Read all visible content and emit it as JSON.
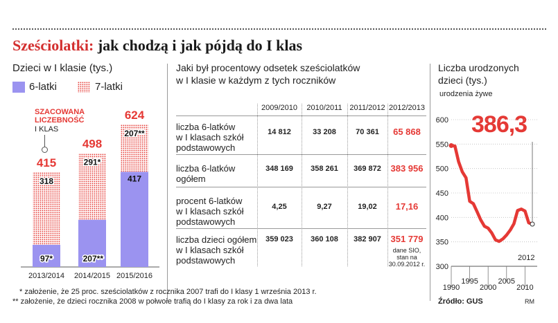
{
  "title": {
    "red": "Sześciolatki:",
    "rest": " jak chodzą i jak pójdą do I klas"
  },
  "bar_chart": {
    "subtitle": "Dzieci w I klasie (tys.)",
    "legend_6": "6-latki",
    "legend_7": "7-latki",
    "est_label_1": "SZACOWANA",
    "est_label_2": "LICZEBNOŚĆ",
    "est_label_3": "I KLAS",
    "colors": {
      "six": "#9b93f0",
      "seven": "#e53935"
    }
  },
  "table": {
    "heading_1": "Jaki był procentowy odsetek sześciolatków",
    "heading_2": "w I klasie w każdym z tych roczników",
    "columns": [
      "2009/2010",
      "2010/2011",
      "2011/2012",
      "2012/2013"
    ],
    "rows": [
      {
        "label": [
          "liczba 6-latków",
          "w I klasach szkół",
          "podstawowych"
        ],
        "values": [
          "14 812",
          "33 208",
          "70 361",
          "65 868"
        ]
      },
      {
        "label": [
          "liczba 6-latków",
          "ogółem"
        ],
        "values": [
          "348 169",
          "358 261",
          "369 872",
          "383 956"
        ]
      },
      {
        "label": [
          "procent 6-latków",
          "w I klasach szkół",
          "podstawowych"
        ],
        "values": [
          "4,25",
          "9,27",
          "19,02",
          "17,16"
        ]
      },
      {
        "label": [
          "liczba dzieci ogółem",
          "w I klasach szkół",
          "podstawowych"
        ],
        "values": [
          "359 023",
          "360 108",
          "382 907",
          "351 779"
        ]
      }
    ],
    "note": [
      "dane SIO,",
      "stan na",
      "30.09.2012 r."
    ]
  },
  "line_chart": {
    "subtitle_1": "Liczba urodzonych",
    "subtitle_2": "dzieci (tys.)",
    "subtitle_3": "urodzenia żywe",
    "highlight_value": "386,3",
    "highlight_year": "2012"
  },
  "footnotes": {
    "fn1": "* założenie, że 25 proc. sześciolatków z rocznika 2007 trafi do I klasy 1 września 2013 r.",
    "fn2": "** założenie, że dzieci rocznika 2008 w połwoie trafią do I klasy za rok i za dwa lata",
    "source": "Źródło: GUS",
    "author": "RM"
  },
  "chart_data": [
    {
      "type": "bar",
      "title": "Dzieci w I klasie (tys.)",
      "categories": [
        "2013/2014",
        "2014/2015",
        "2015/2016"
      ],
      "series": [
        {
          "name": "6-latki",
          "values": [
            97,
            207,
            417
          ],
          "labels": [
            "97*",
            "207**",
            "417"
          ]
        },
        {
          "name": "7-latki",
          "values": [
            318,
            291,
            207
          ],
          "labels": [
            "318",
            "291*",
            "207**"
          ]
        }
      ],
      "totals": [
        "415",
        "498",
        "624"
      ],
      "stacked": true,
      "ylim": [
        0,
        624
      ]
    },
    {
      "type": "line",
      "title": "Liczba urodzonych dzieci (tys.)",
      "subtitle": "urodzenia żywe",
      "x": [
        1990,
        1991,
        1992,
        1993,
        1994,
        1995,
        1996,
        1997,
        1998,
        1999,
        2000,
        2001,
        2002,
        2003,
        2004,
        2005,
        2006,
        2007,
        2008,
        2009,
        2010,
        2011,
        2012
      ],
      "y": [
        547,
        546,
        514,
        493,
        481,
        433,
        428,
        412,
        395,
        382,
        378,
        368,
        354,
        351,
        356,
        364,
        374,
        387,
        414,
        417,
        413,
        389,
        386.3
      ],
      "xticks": [
        "1990",
        "1995",
        "2000",
        "2005",
        "2010"
      ],
      "yticks": [
        "300",
        "350",
        "400",
        "450",
        "500",
        "550",
        "600"
      ],
      "xlim": [
        1990,
        2012
      ],
      "ylim": [
        300,
        600
      ]
    }
  ]
}
